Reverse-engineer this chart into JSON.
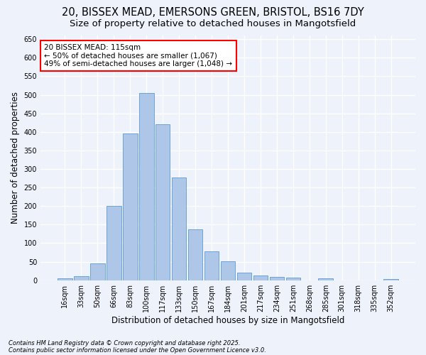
{
  "title_line1": "20, BISSEX MEAD, EMERSONS GREEN, BRISTOL, BS16 7DY",
  "title_line2": "Size of property relative to detached houses in Mangotsfield",
  "xlabel": "Distribution of detached houses by size in Mangotsfield",
  "ylabel": "Number of detached properties",
  "categories": [
    "16sqm",
    "33sqm",
    "50sqm",
    "66sqm",
    "83sqm",
    "100sqm",
    "117sqm",
    "133sqm",
    "150sqm",
    "167sqm",
    "184sqm",
    "201sqm",
    "217sqm",
    "234sqm",
    "251sqm",
    "268sqm",
    "285sqm",
    "301sqm",
    "318sqm",
    "335sqm",
    "352sqm"
  ],
  "values": [
    5,
    10,
    45,
    200,
    395,
    505,
    420,
    278,
    138,
    78,
    52,
    20,
    12,
    9,
    8,
    0,
    6,
    0,
    0,
    0,
    3
  ],
  "bar_color": "#aec6e8",
  "bar_edge_color": "#5b9bd5",
  "highlight_index": 6,
  "annotation_line1": "20 BISSEX MEAD: 115sqm",
  "annotation_line2": "← 50% of detached houses are smaller (1,067)",
  "annotation_line3": "49% of semi-detached houses are larger (1,048) →",
  "annotation_box_color": "white",
  "annotation_border_color": "red",
  "ylim": [
    0,
    660
  ],
  "yticks": [
    0,
    50,
    100,
    150,
    200,
    250,
    300,
    350,
    400,
    450,
    500,
    550,
    600,
    650
  ],
  "bg_color": "#eef2fb",
  "grid_color": "white",
  "footer_line1": "Contains HM Land Registry data © Crown copyright and database right 2025.",
  "footer_line2": "Contains public sector information licensed under the Open Government Licence v3.0.",
  "title_fontsize": 10.5,
  "subtitle_fontsize": 9.5,
  "axis_label_fontsize": 8.5,
  "tick_fontsize": 7,
  "annotation_fontsize": 7.5,
  "footer_fontsize": 6
}
